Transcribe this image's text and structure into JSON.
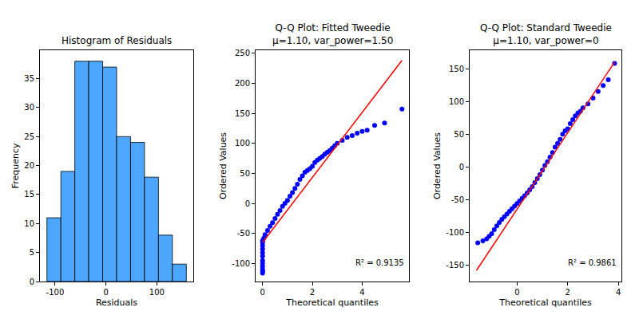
{
  "chart_data": [
    {
      "type": "histogram",
      "title": "Histogram of Residuals",
      "x_label": "Residuals",
      "y_label": "Frequency",
      "bins": [
        -116,
        -88.6,
        -61.2,
        -33.8,
        -6.4,
        21,
        48.4,
        75.8,
        103.2,
        130.6,
        158
      ],
      "counts": [
        11,
        19,
        38,
        38,
        37,
        25,
        24,
        18,
        8,
        3
      ],
      "color": "#4da6ff",
      "xlim": [
        -129.7,
        171.7
      ],
      "xticks": [
        -100,
        0,
        100
      ],
      "ylim": [
        0,
        39.9
      ],
      "yticks": [
        0,
        5,
        10,
        15,
        20,
        25,
        30,
        35
      ],
      "grid": false
    },
    {
      "type": "scatter",
      "title": "Q-Q Plot: Fitted Tweedie\nμ=1.10, var_power=1.50",
      "x_label": "Theoretical quantiles",
      "y_label": "Ordered Values",
      "annotation": "R² = 0.9135",
      "series": [
        {
          "type": "scatter",
          "color": "#0000ff",
          "marker": "circle",
          "x": [
            0,
            0,
            0,
            0,
            0,
            0,
            0,
            0,
            0,
            0,
            0,
            0,
            0.05,
            0.1,
            0.2,
            0.3,
            0.4,
            0.5,
            0.6,
            0.7,
            0.8,
            0.9,
            1.0,
            1.1,
            1.2,
            1.3,
            1.4,
            1.5,
            1.6,
            1.7,
            1.8,
            1.9,
            2.0,
            2.1,
            2.2,
            2.3,
            2.4,
            2.5,
            2.6,
            2.7,
            2.8,
            2.9,
            3.0,
            3.2,
            3.4,
            3.6,
            3.8,
            4.0,
            4.2,
            4.5,
            4.9,
            5.6
          ],
          "y": [
            -116,
            -113,
            -110,
            -105,
            -100,
            -95,
            -88,
            -82,
            -76,
            -70,
            -65,
            -62,
            -58,
            -52,
            -45,
            -38,
            -32,
            -25,
            -18,
            -12,
            -5,
            0,
            5,
            12,
            18,
            25,
            32,
            40,
            46,
            52,
            55,
            58,
            62,
            68,
            72,
            75,
            78,
            82,
            85,
            88,
            92,
            96,
            100,
            105,
            110,
            113,
            117,
            120,
            122,
            130,
            134,
            157
          ]
        },
        {
          "type": "line",
          "color": "#ff0000",
          "line_style": "solid",
          "x": [
            0,
            5.6
          ],
          "y": [
            -65,
            238
          ]
        }
      ],
      "xlim": [
        -0.28,
        5.88
      ],
      "xticks": [
        0,
        2,
        4
      ],
      "ylim": [
        -130,
        255
      ],
      "yticks": [
        -100,
        -50,
        0,
        50,
        100,
        150,
        200,
        250
      ],
      "grid": false
    },
    {
      "type": "scatter",
      "title": "Q-Q Plot: Standard Tweedie\nμ=1.10, var_power=0",
      "x_label": "Theoretical quantiles",
      "y_label": "Ordered Values",
      "annotation": "R² = 0.9861",
      "series": [
        {
          "type": "scatter",
          "color": "#0000ff",
          "marker": "circle",
          "x": [
            -1.55,
            -1.35,
            -1.2,
            -1.1,
            -1.0,
            -0.9,
            -0.8,
            -0.7,
            -0.6,
            -0.5,
            -0.4,
            -0.3,
            -0.2,
            -0.1,
            0,
            0.1,
            0.2,
            0.3,
            0.4,
            0.5,
            0.6,
            0.7,
            0.8,
            0.9,
            1.0,
            1.1,
            1.2,
            1.3,
            1.4,
            1.5,
            1.6,
            1.7,
            1.8,
            1.9,
            2.0,
            2.1,
            2.2,
            2.3,
            2.4,
            2.5,
            2.6,
            2.8,
            3.0,
            3.2,
            3.4,
            3.6,
            3.85
          ],
          "y": [
            -116,
            -113,
            -110,
            -106,
            -102,
            -96,
            -90,
            -85,
            -80,
            -76,
            -72,
            -68,
            -64,
            -60,
            -56,
            -52,
            -48,
            -44,
            -40,
            -35,
            -30,
            -24,
            -18,
            -12,
            -5,
            2,
            8,
            15,
            22,
            30,
            36,
            42,
            50,
            55,
            58,
            66,
            72,
            78,
            82,
            85,
            90,
            96,
            105,
            115,
            124,
            133,
            158
          ]
        },
        {
          "type": "line",
          "color": "#ff0000",
          "line_style": "solid",
          "x": [
            -1.6,
            3.85
          ],
          "y": [
            -158,
            160
          ]
        }
      ],
      "xlim": [
        -1.87,
        4.12
      ],
      "xticks": [
        0,
        2,
        4
      ],
      "ylim": [
        -175,
        178
      ],
      "yticks": [
        -150,
        -100,
        -50,
        0,
        50,
        100,
        150
      ],
      "grid": false
    }
  ]
}
